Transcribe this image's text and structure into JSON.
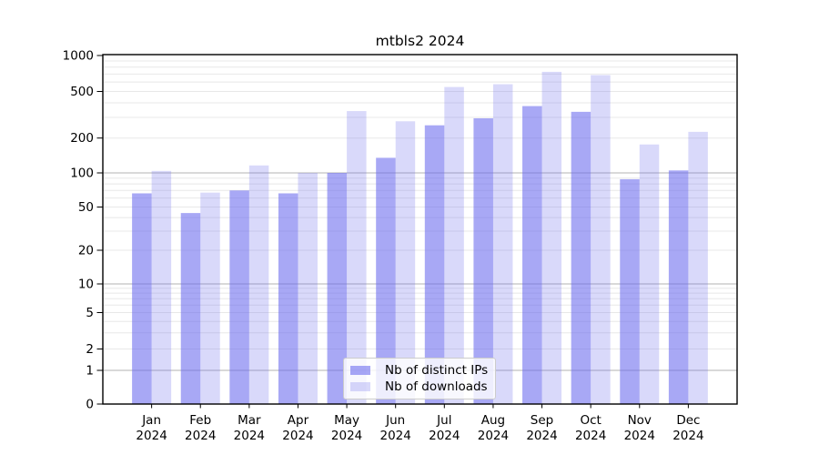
{
  "figure": {
    "title": "mtbls2 2024"
  },
  "legend": {
    "items": [
      {
        "label": "Nb of distinct IPs",
        "color": "rgba(105,105,237,0.58)"
      },
      {
        "label": "Nb of downloads",
        "color": "rgba(105,105,237,0.25)"
      }
    ]
  },
  "colors": {
    "bar_base": "#6969ed",
    "ips_fill": "rgba(105,105,237,0.58)",
    "downloads_fill": "rgba(105,105,237,0.25)",
    "major_grid": "#b3b3b3",
    "minor_grid": "#e8e8e8",
    "axis": "#000000"
  },
  "chart_data": {
    "type": "bar",
    "title": "mtbls2 2024",
    "categories": [
      "Jan",
      "Feb",
      "Mar",
      "Apr",
      "May",
      "Jun",
      "Jul",
      "Aug",
      "Sep",
      "Oct",
      "Nov",
      "Dec"
    ],
    "x_year": "2024",
    "series": [
      {
        "name": "Nb of distinct IPs",
        "color": "rgba(105,105,237,0.58)",
        "values": [
          66,
          44,
          70,
          66,
          100,
          135,
          257,
          295,
          375,
          335,
          88,
          105
        ]
      },
      {
        "name": "Nb of downloads",
        "color": "rgba(105,105,237,0.25)",
        "values": [
          104,
          67,
          116,
          100,
          340,
          278,
          545,
          575,
          730,
          685,
          176,
          226
        ]
      }
    ],
    "y_scale": "symlog",
    "y_ticks": [
      0,
      1,
      2,
      5,
      10,
      20,
      50,
      100,
      200,
      500,
      1000
    ],
    "ylim": [
      0,
      1000
    ],
    "grid": true,
    "legend_position": "lower center"
  }
}
